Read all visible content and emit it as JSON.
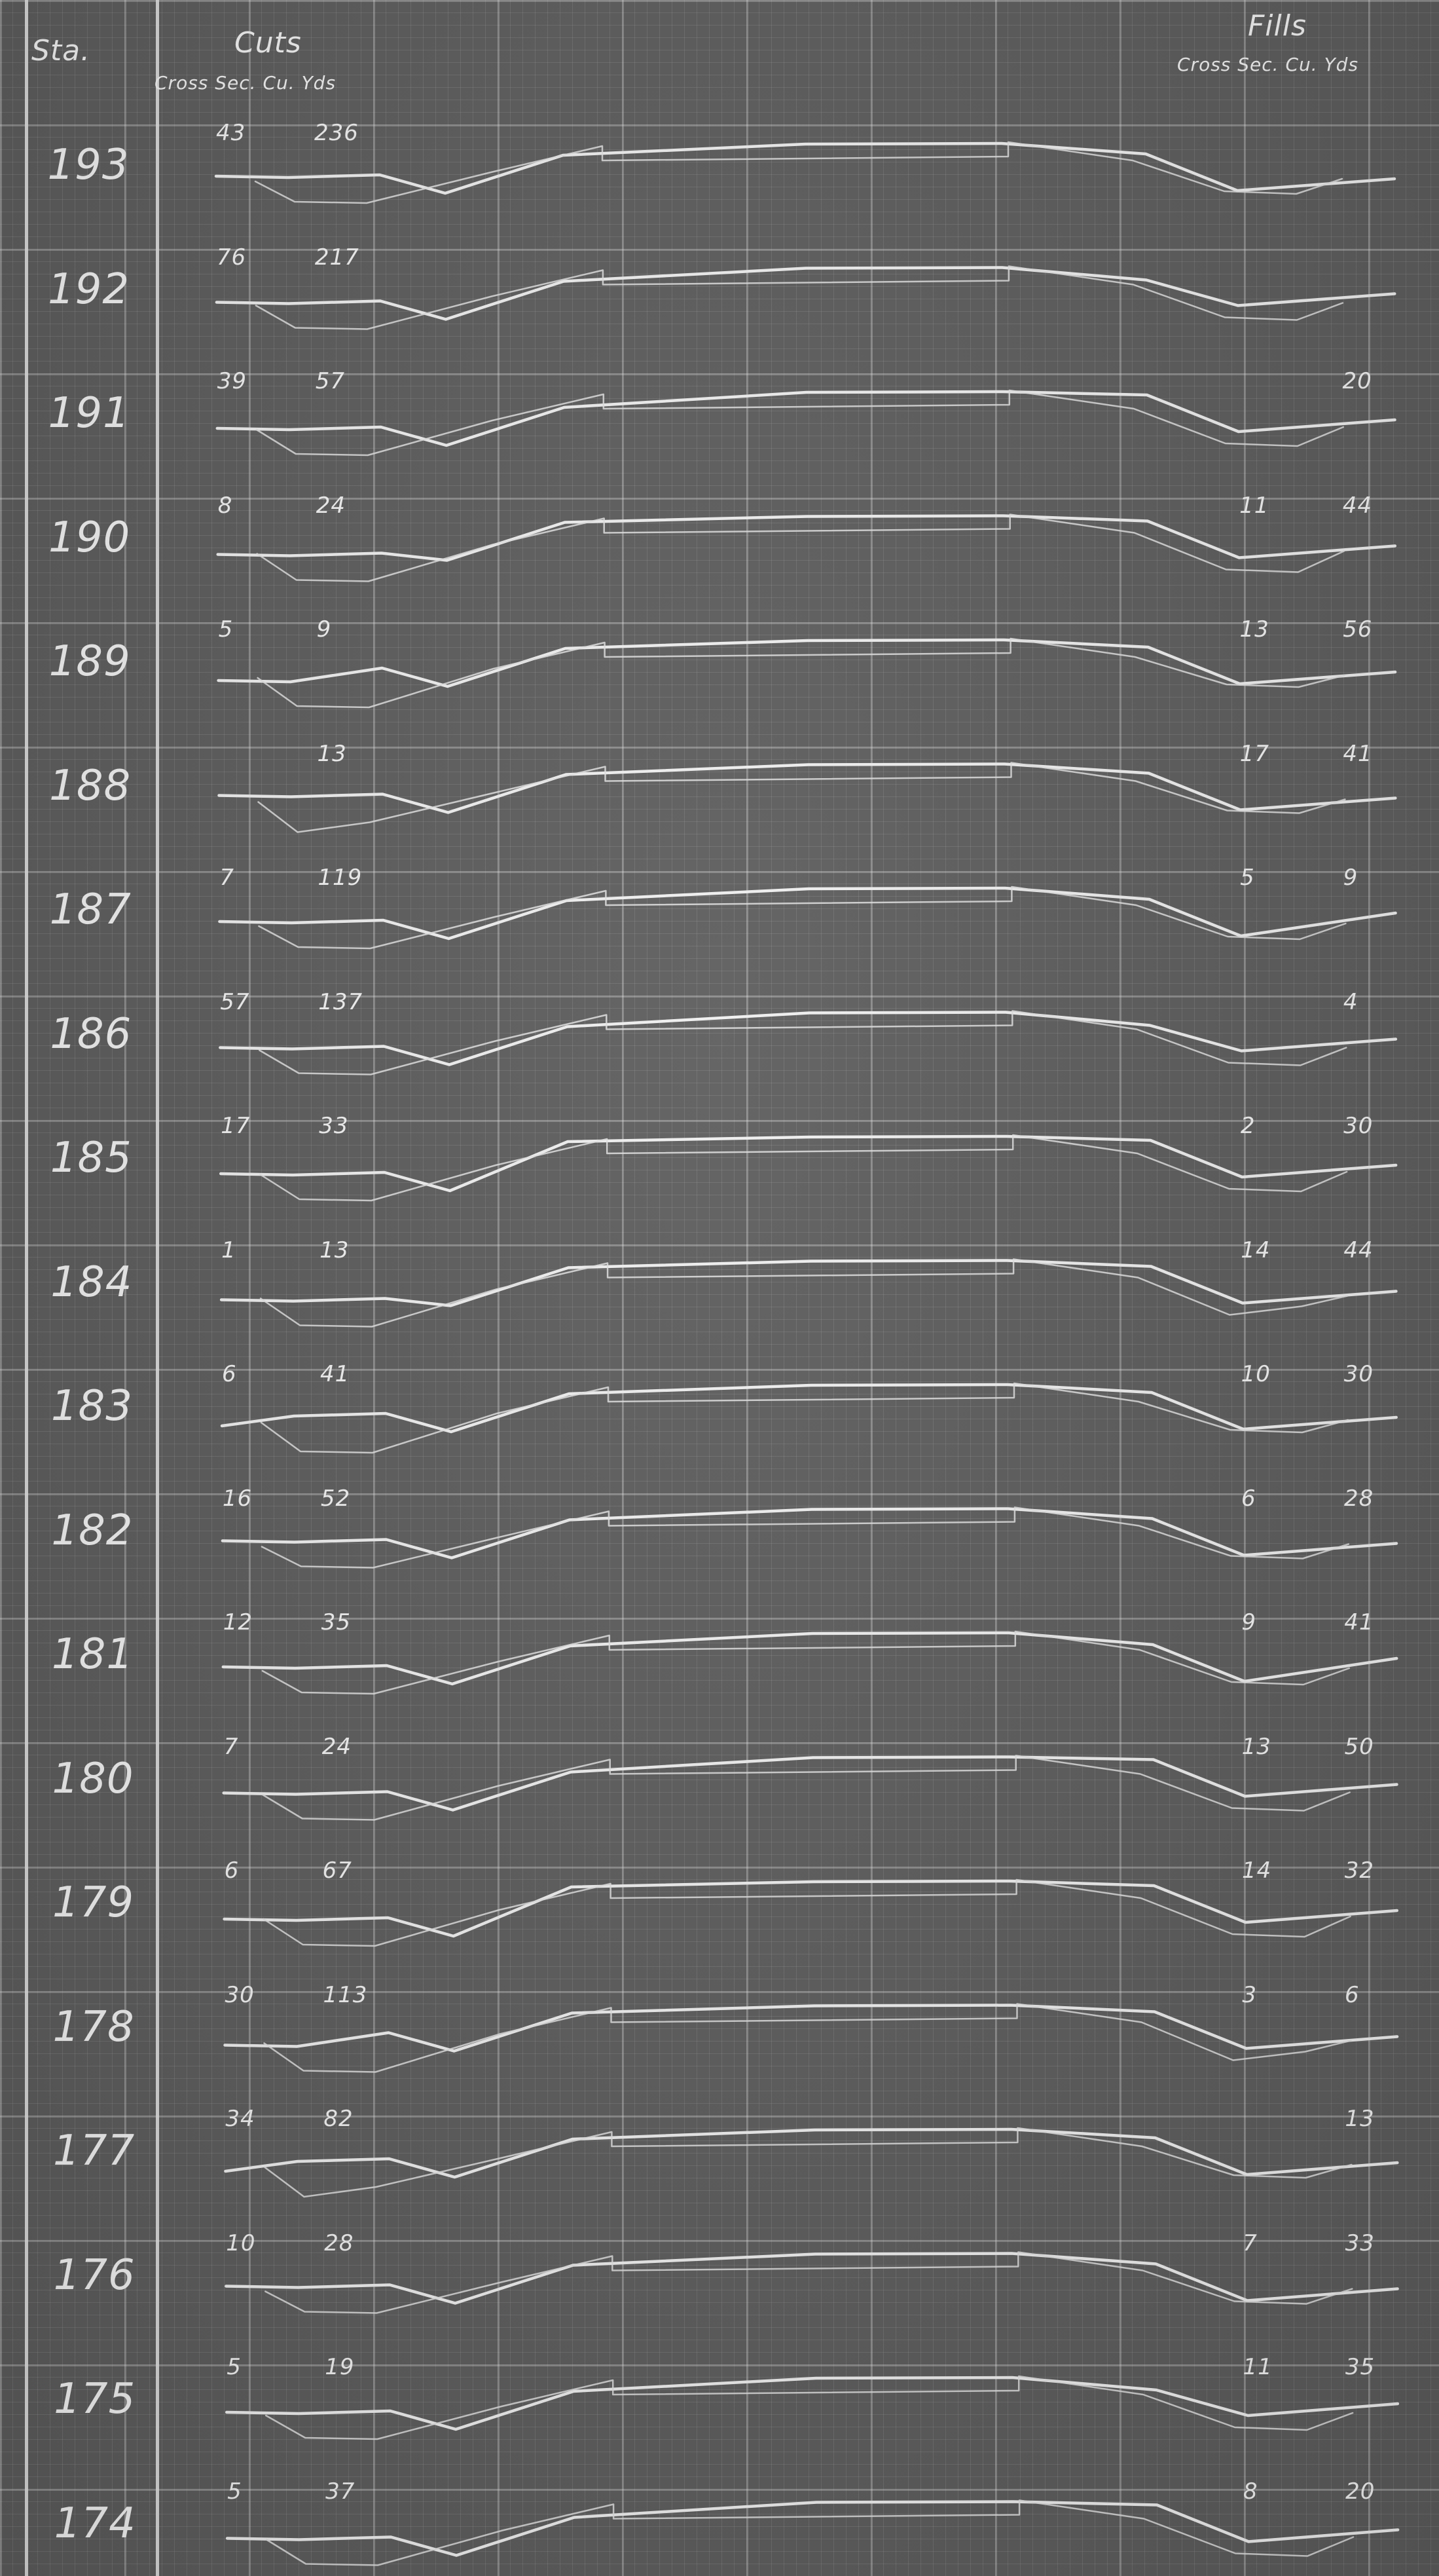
{
  "header": {
    "sta_label": "Sta.",
    "cuts_title": "Cuts",
    "cuts_sub": "Cross Sec. Cu. Yds",
    "fills_title": "Fills",
    "fills_sub": "Cross Sec. Cu. Yds"
  },
  "stations": [
    {
      "sta": "193",
      "cut_xs": "43",
      "cut_cy": "236",
      "fill_xs": "",
      "fill_cy": ""
    },
    {
      "sta": "192",
      "cut_xs": "76",
      "cut_cy": "217",
      "fill_xs": "",
      "fill_cy": ""
    },
    {
      "sta": "191",
      "cut_xs": "39",
      "cut_cy": "57",
      "fill_xs": "",
      "fill_cy": "20"
    },
    {
      "sta": "190",
      "cut_xs": "8",
      "cut_cy": "24",
      "fill_xs": "11",
      "fill_cy": "44"
    },
    {
      "sta": "189",
      "cut_xs": "5",
      "cut_cy": "9",
      "fill_xs": "13",
      "fill_cy": "56"
    },
    {
      "sta": "188",
      "cut_xs": "",
      "cut_cy": "13",
      "fill_xs": "17",
      "fill_cy": "41"
    },
    {
      "sta": "187",
      "cut_xs": "7",
      "cut_cy": "119",
      "fill_xs": "5",
      "fill_cy": "9"
    },
    {
      "sta": "186",
      "cut_xs": "57",
      "cut_cy": "137",
      "fill_xs": "",
      "fill_cy": "4"
    },
    {
      "sta": "185",
      "cut_xs": "17",
      "cut_cy": "33",
      "fill_xs": "2",
      "fill_cy": "30"
    },
    {
      "sta": "184",
      "cut_xs": "1",
      "cut_cy": "13",
      "fill_xs": "14",
      "fill_cy": "44"
    },
    {
      "sta": "183",
      "cut_xs": "6",
      "cut_cy": "41",
      "fill_xs": "10",
      "fill_cy": "30"
    },
    {
      "sta": "182",
      "cut_xs": "16",
      "cut_cy": "52",
      "fill_xs": "6",
      "fill_cy": "28"
    },
    {
      "sta": "181",
      "cut_xs": "12",
      "cut_cy": "35",
      "fill_xs": "9",
      "fill_cy": "41"
    },
    {
      "sta": "180",
      "cut_xs": "7",
      "cut_cy": "24",
      "fill_xs": "13",
      "fill_cy": "50"
    },
    {
      "sta": "179",
      "cut_xs": "6",
      "cut_cy": "67",
      "fill_xs": "14",
      "fill_cy": "32"
    },
    {
      "sta": "178",
      "cut_xs": "30",
      "cut_cy": "113",
      "fill_xs": "3",
      "fill_cy": "6"
    },
    {
      "sta": "177",
      "cut_xs": "34",
      "cut_cy": "82",
      "fill_xs": "",
      "fill_cy": "13"
    },
    {
      "sta": "176",
      "cut_xs": "10",
      "cut_cy": "28",
      "fill_xs": "7",
      "fill_cy": "33"
    },
    {
      "sta": "175",
      "cut_xs": "5",
      "cut_cy": "19",
      "fill_xs": "11",
      "fill_cy": "35"
    },
    {
      "sta": "174",
      "cut_xs": "5",
      "cut_cy": "37",
      "fill_xs": "8",
      "fill_cy": "20"
    }
  ]
}
